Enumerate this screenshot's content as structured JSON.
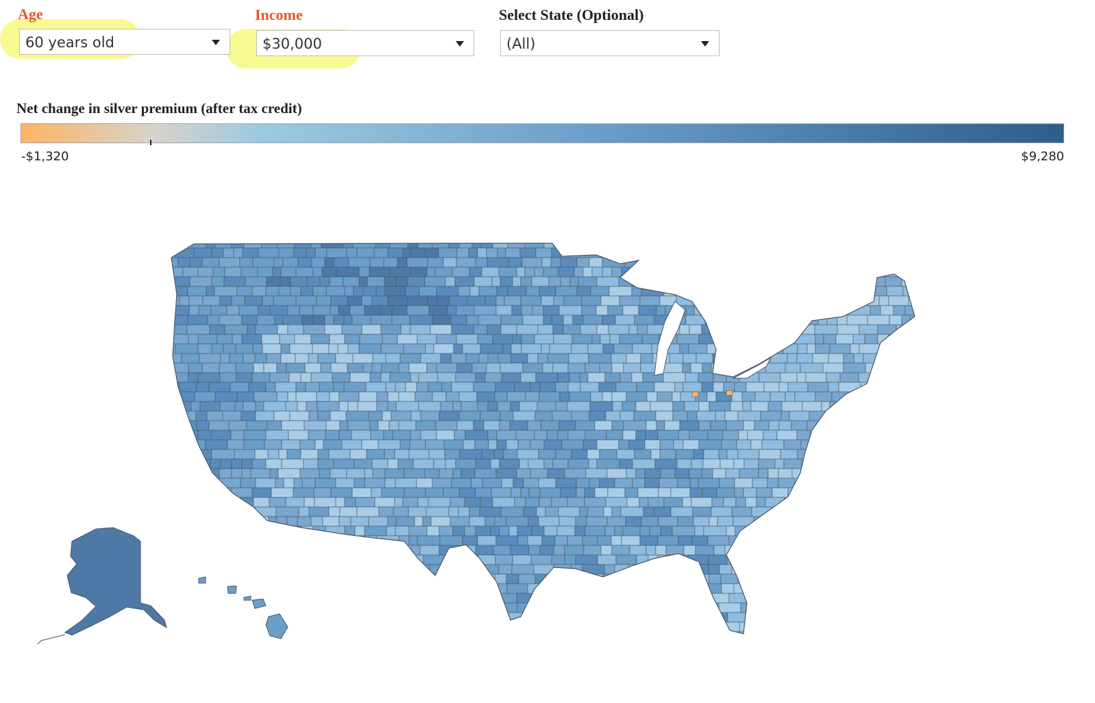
{
  "filters": {
    "age": {
      "label": "Age",
      "value": "60 years old"
    },
    "income": {
      "label": "Income",
      "value": "$30,000"
    },
    "state": {
      "label": "Select State (Optional)",
      "value": "(All)"
    }
  },
  "legend": {
    "title": "Net change in silver premium (after tax credit)",
    "min_label": "-$1,320",
    "max_label": "$9,280",
    "zero_fraction": 0.124
  },
  "colors": {
    "filter_label_accent": "#e8562a",
    "highlight": "#f6f66a",
    "scale": [
      "#fdb462",
      "#d9d3c8",
      "#9ecae1",
      "#6b9ec8",
      "#2d5e8c"
    ]
  },
  "map": {
    "region": "United States (counties)",
    "regions_shown": [
      "Contiguous US",
      "Alaska",
      "Hawaii"
    ]
  }
}
